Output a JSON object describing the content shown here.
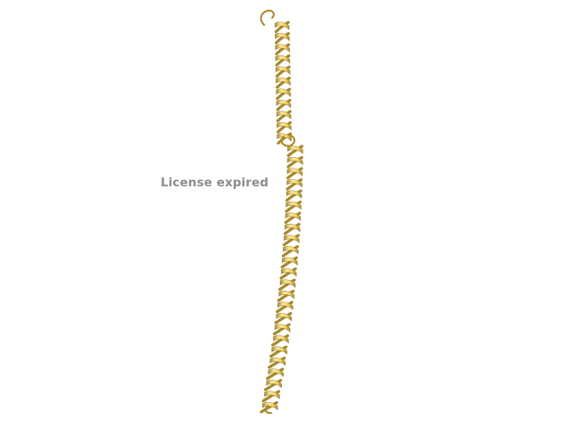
{
  "watermark": {
    "text": "License expired",
    "color": "#8c8c8c"
  },
  "scene": {
    "subject": "protein-alpha-helix-ribbon",
    "background_color": "#ffffff",
    "ribbon_front_color": "#f2d264",
    "ribbon_highlight_color": "#fbe89a",
    "ribbon_back_color": "#a8882c",
    "ribbon_outline_color": "#6e5618"
  }
}
